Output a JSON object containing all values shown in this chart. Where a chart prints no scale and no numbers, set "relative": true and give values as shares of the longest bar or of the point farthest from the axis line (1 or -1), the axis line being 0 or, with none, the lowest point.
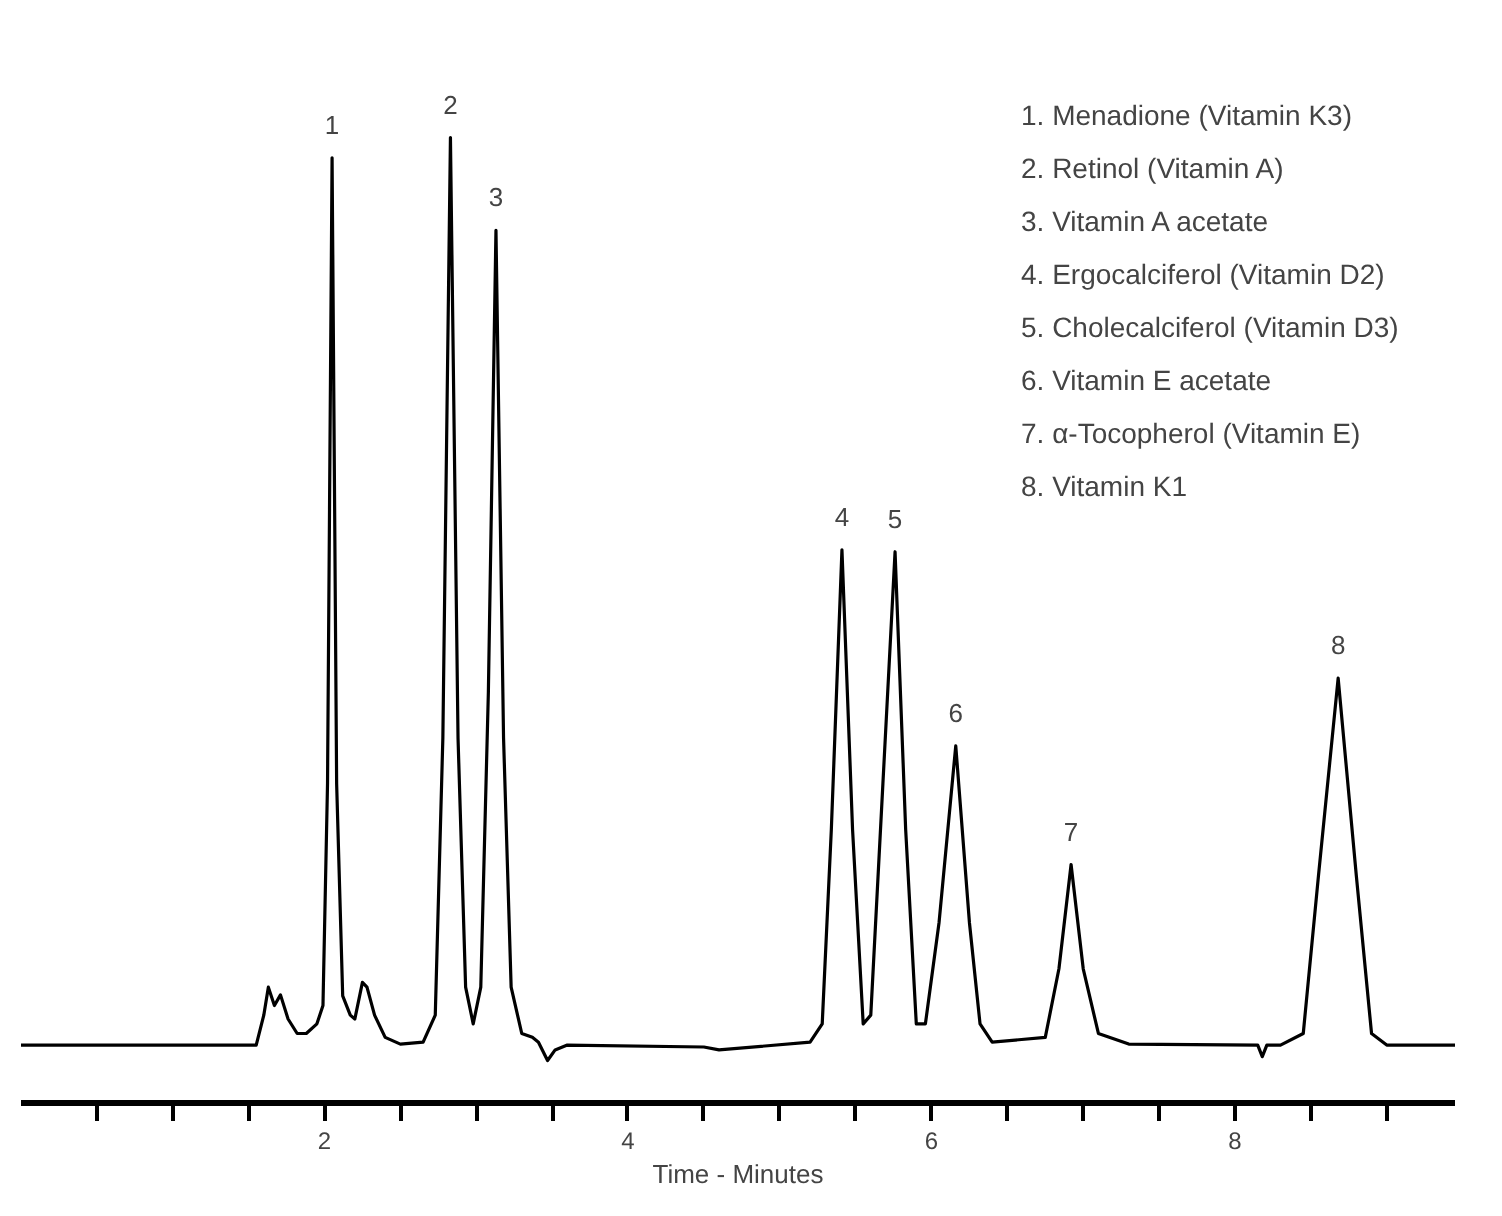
{
  "chart_data": {
    "type": "line",
    "relative": true,
    "xlabel": "Time - Minutes",
    "xlim": [
      0,
      9.45
    ],
    "xticks": [
      {
        "value": 0.5,
        "label": null
      },
      {
        "value": 1,
        "label": null
      },
      {
        "value": 1.5,
        "label": null
      },
      2,
      {
        "value": 2.5,
        "label": null
      },
      {
        "value": 3,
        "label": null
      },
      {
        "value": 3.5,
        "label": null
      },
      4,
      {
        "value": 4.5,
        "label": null
      },
      {
        "value": 5,
        "label": null
      },
      {
        "value": 5.5,
        "label": null
      },
      6,
      {
        "value": 6.5,
        "label": null
      },
      {
        "value": 7,
        "label": null
      },
      {
        "value": 7.5,
        "label": null
      },
      8,
      {
        "value": 8.5,
        "label": null
      },
      {
        "value": 9,
        "label": null
      }
    ],
    "grid": false,
    "marker": "none",
    "line_style": "solid",
    "series": [
      {
        "color": "#000000",
        "x": [
          0.0,
          1.55,
          1.6,
          1.63,
          1.67,
          1.71,
          1.76,
          1.82,
          1.88,
          1.95,
          1.99,
          2.02,
          2.05,
          2.08,
          2.12,
          2.17,
          2.2,
          2.25,
          2.28,
          2.33,
          2.4,
          2.5,
          2.65,
          2.73,
          2.78,
          2.83,
          2.88,
          2.93,
          2.98,
          3.03,
          3.08,
          3.13,
          3.18,
          3.23,
          3.3,
          3.37,
          3.41,
          3.47,
          3.52,
          3.6,
          4.5,
          4.6,
          5.2,
          5.28,
          5.34,
          5.41,
          5.48,
          5.55,
          5.6,
          5.68,
          5.76,
          5.83,
          5.9,
          5.96,
          6.05,
          6.16,
          6.25,
          6.32,
          6.4,
          6.75,
          6.84,
          6.92,
          7.0,
          7.1,
          7.3,
          8.15,
          8.18,
          8.21,
          8.3,
          8.45,
          8.55,
          8.68,
          8.8,
          8.9,
          9.0,
          9.45
        ],
        "values": [
          0.06,
          0.06,
          0.091,
          0.12,
          0.101,
          0.112,
          0.087,
          0.072,
          0.072,
          0.082,
          0.101,
          0.331,
          0.979,
          0.331,
          0.111,
          0.091,
          0.087,
          0.125,
          0.12,
          0.091,
          0.068,
          0.061,
          0.063,
          0.091,
          0.378,
          1.0,
          0.378,
          0.12,
          0.082,
          0.12,
          0.426,
          0.904,
          0.378,
          0.12,
          0.072,
          0.068,
          0.063,
          0.044,
          0.055,
          0.06,
          0.058,
          0.055,
          0.063,
          0.082,
          0.283,
          0.573,
          0.283,
          0.082,
          0.091,
          0.331,
          0.571,
          0.283,
          0.082,
          0.082,
          0.187,
          0.37,
          0.187,
          0.082,
          0.063,
          0.068,
          0.139,
          0.247,
          0.139,
          0.072,
          0.061,
          0.06,
          0.048,
          0.06,
          0.06,
          0.072,
          0.235,
          0.44,
          0.235,
          0.072,
          0.06,
          0.06
        ]
      }
    ],
    "annotations": [
      {
        "text": "1",
        "x": 2.05,
        "y": 0.979
      },
      {
        "text": "2",
        "x": 2.83,
        "y": 1.0
      },
      {
        "text": "3",
        "x": 3.13,
        "y": 0.904
      },
      {
        "text": "4",
        "x": 5.41,
        "y": 0.573
      },
      {
        "text": "5",
        "x": 5.76,
        "y": 0.571
      },
      {
        "text": "6",
        "x": 6.16,
        "y": 0.37
      },
      {
        "text": "7",
        "x": 6.92,
        "y": 0.247
      },
      {
        "text": "8",
        "x": 8.68,
        "y": 0.44
      },
      "1. Menadione (Vitamin K3)",
      "2. Retinol (Vitamin A)",
      "3. Vitamin A acetate",
      "4. Ergocalciferol (Vitamin D2)",
      "5. Cholecalciferol (Vitamin D3)",
      "6. Vitamin E acetate",
      "7. α-Tocopherol (Vitamin E)",
      "8. Vitamin K1"
    ]
  }
}
